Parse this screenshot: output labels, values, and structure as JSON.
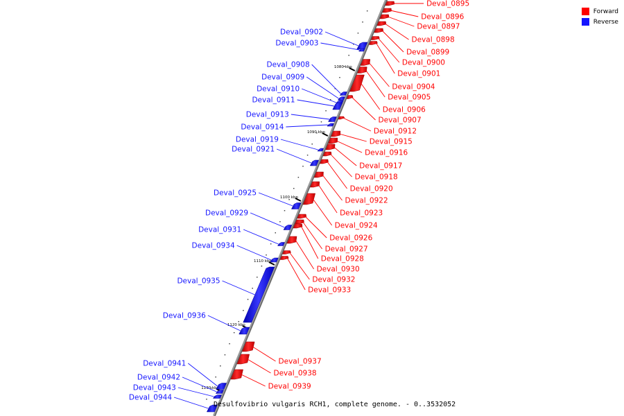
{
  "title": "Desulfovibrio vulgaris RCH1, complete genome. - 0..3532052",
  "colors": {
    "forward": "#ff0000",
    "reverse": "#1515ff",
    "axis": "#8a8a8a"
  },
  "legend": [
    {
      "label": "Forward",
      "color": "#ff0000"
    },
    {
      "label": "Reverse",
      "color": "#1515ff"
    }
  ],
  "scale_labels": [
    "1080 kbp",
    "1090 kbp",
    "1100 kbp",
    "1110 kbp",
    "1120 kbp",
    "1130 kbp"
  ],
  "forward_genes": [
    "Deval_0895",
    "Deval_0896",
    "Deval_0897",
    "Deval_0898",
    "Deval_0899",
    "Deval_0900",
    "Deval_0901",
    "Deval_0904",
    "Deval_0905",
    "Deval_0906",
    "Deval_0907",
    "Deval_0912",
    "Deval_0915",
    "Deval_0916",
    "Deval_0917",
    "Deval_0918",
    "Deval_0920",
    "Deval_0922",
    "Deval_0923",
    "Deval_0924",
    "Deval_0926",
    "Deval_0927",
    "Deval_0928",
    "Deval_0930",
    "Deval_0932",
    "Deval_0933",
    "Deval_0937",
    "Deval_0938",
    "Deval_0939"
  ],
  "reverse_genes": [
    "Deval_0902",
    "Deval_0903",
    "Deval_0908",
    "Deval_0909",
    "Deval_0910",
    "Deval_0911",
    "Deval_0913",
    "Deval_0914",
    "Deval_0919",
    "Deval_0921",
    "Deval_0925",
    "Deval_0929",
    "Deval_0931",
    "Deval_0934",
    "Deval_0935",
    "Deval_0936",
    "Deval_0941",
    "Deval_0942",
    "Deval_0943",
    "Deval_0944"
  ]
}
